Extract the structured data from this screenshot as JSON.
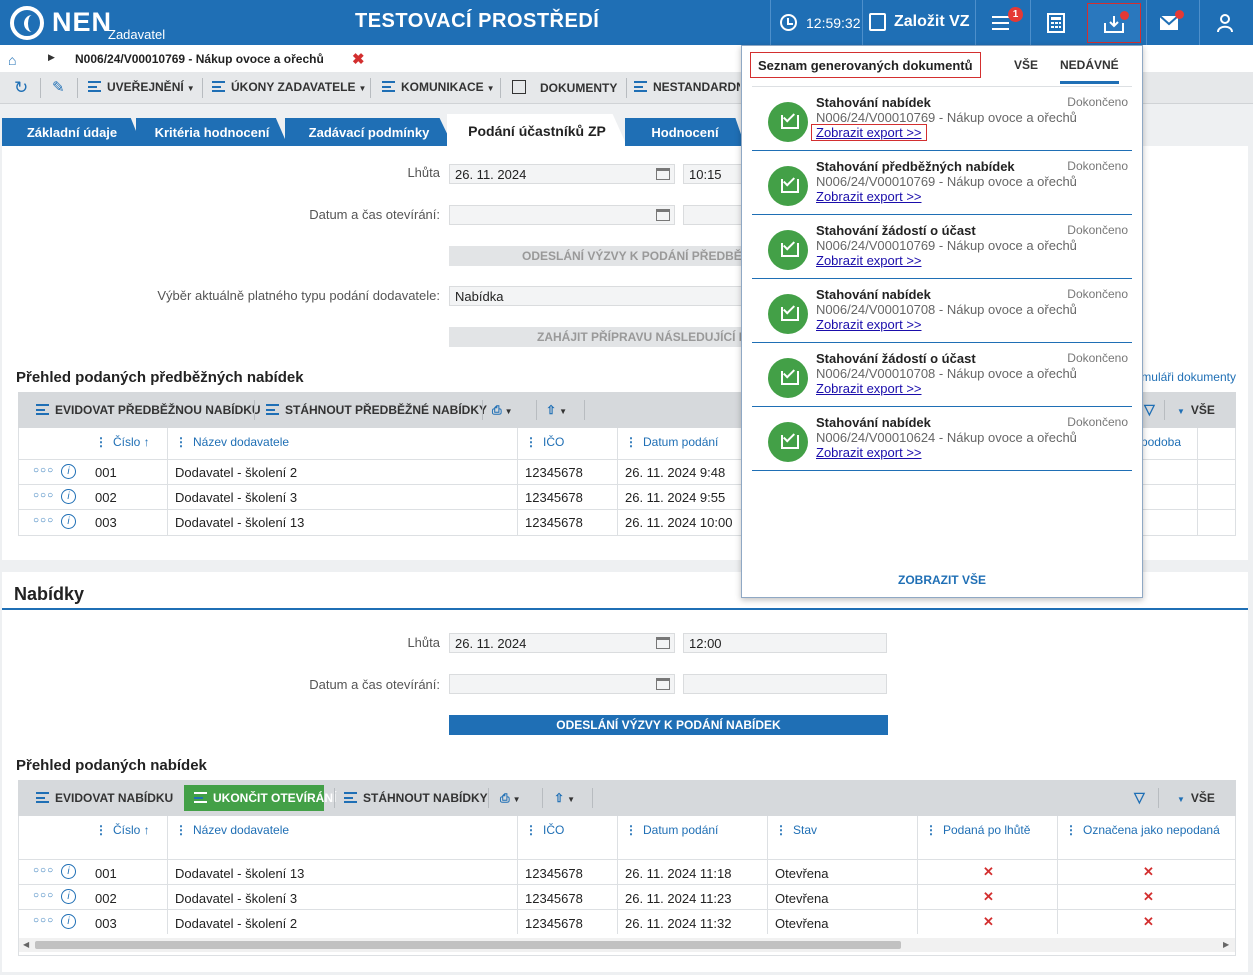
{
  "header": {
    "logo": "NEN",
    "logo_sub": "Zadavatel",
    "title": "TESTOVACÍ PROSTŘEDÍ",
    "clock": "12:59:32",
    "create": "Založit VZ",
    "menu_badge": "1"
  },
  "breadcrumb": {
    "text": "N006/24/V00010769 - Nákup ovoce a ořechů"
  },
  "toolbar": {
    "items": [
      "UVEŘEJNĚNÍ",
      "ÚKONY ZADAVATELE",
      "KOMUNIKACE",
      "DOKUMENTY",
      "NESTANDARDNÍ"
    ]
  },
  "tabs": [
    "Základní údaje",
    "Kritéria hodnocení",
    "Zadávací podmínky",
    "Podání účastníků ZP",
    "Hodnocení"
  ],
  "pre": {
    "lhuta_label": "Lhůta",
    "lhuta_date": "26. 11. 2024",
    "lhuta_time": "10:15",
    "open_label": "Datum a čas otevírání:",
    "send_btn": "ODESLÁNÍ VÝZVY K PODÁNÍ PŘEDBĚŽNÝCH NABÍDEK",
    "type_label": "Výběr aktuálně platného typu podání dodavatele:",
    "type_value": "Nabídka",
    "prep_btn": "ZAHÁJIT PŘÍPRAVU NÁSLEDUJÍCÍ FÁZE",
    "section": "Přehled podaných předběžných nabídek",
    "right_link": "Formuláři dokumenty",
    "btn_add": "EVIDOVAT PŘEDBĚŽNOU NABÍDKU",
    "btn_dl": "STÁHNOUT PŘEDBĚŽNÉ NABÍDKY",
    "all": "VŠE",
    "cols": [
      "Číslo",
      "Název dodavatele",
      "IČO",
      "Datum podání",
      "Lhůta podoba"
    ],
    "rows": [
      {
        "no": "001",
        "name": "Dodavatel - školení 2",
        "ico": "12345678",
        "date": "26. 11. 2024 9:48"
      },
      {
        "no": "002",
        "name": "Dodavatel - školení 3",
        "ico": "12345678",
        "date": "26. 11. 2024 9:55"
      },
      {
        "no": "003",
        "name": "Dodavatel - školení 13",
        "ico": "12345678",
        "date": "26. 11. 2024 10:00"
      }
    ]
  },
  "offers": {
    "title": "Nabídky",
    "lhuta_label": "Lhůta",
    "lhuta_date": "26. 11. 2024",
    "lhuta_time": "12:00",
    "open_label": "Datum a čas otevírání:",
    "send_btn": "ODESLÁNÍ VÝZVY K PODÁNÍ NABÍDEK",
    "section": "Přehled podaných nabídek",
    "btn_add": "EVIDOVAT NABÍDKU",
    "btn_end": "UKONČIT OTEVÍRÁNÍ",
    "btn_dl": "STÁHNOUT NABÍDKY",
    "all": "VŠE",
    "cols": [
      "Číslo",
      "Název dodavatele",
      "IČO",
      "Datum podání",
      "Stav",
      "Podaná po lhůtě",
      "Označena jako nepodaná"
    ],
    "rows": [
      {
        "no": "001",
        "name": "Dodavatel - školení 13",
        "ico": "12345678",
        "date": "26. 11. 2024 11:18",
        "state": "Otevřena"
      },
      {
        "no": "002",
        "name": "Dodavatel - školení 3",
        "ico": "12345678",
        "date": "26. 11. 2024 11:23",
        "state": "Otevřena"
      },
      {
        "no": "003",
        "name": "Dodavatel - školení 2",
        "ico": "12345678",
        "date": "26. 11. 2024 11:32",
        "state": "Otevřena"
      }
    ]
  },
  "docs": {
    "title": "Seznam generovaných dokumentů",
    "tab_all": "VŠE",
    "tab_recent": "NEDÁVNÉ",
    "show_all": "ZOBRAZIT VŠE",
    "items": [
      {
        "title": "Stahování nabídek",
        "status": "Dokončeno",
        "sub": "N006/24/V00010769 - Nákup ovoce a ořechů",
        "link": "Zobrazit export >>"
      },
      {
        "title": "Stahování předběžných nabídek",
        "status": "Dokončeno",
        "sub": "N006/24/V00010769 - Nákup ovoce a ořechů",
        "link": "Zobrazit export >>"
      },
      {
        "title": "Stahování žádostí o účast",
        "status": "Dokončeno",
        "sub": "N006/24/V00010769 - Nákup ovoce a ořechů",
        "link": "Zobrazit export >>"
      },
      {
        "title": "Stahování nabídek",
        "status": "Dokončeno",
        "sub": "N006/24/V00010708 - Nákup ovoce a ořechů",
        "link": "Zobrazit export >>"
      },
      {
        "title": "Stahování žádostí o účast",
        "status": "Dokončeno",
        "sub": "N006/24/V00010708 - Nákup ovoce a ořechů",
        "link": "Zobrazit export >>"
      },
      {
        "title": "Stahování nabídek",
        "status": "Dokončeno",
        "sub": "N006/24/V00010624 - Nákup ovoce a ořechů",
        "link": "Zobrazit export >>"
      }
    ]
  },
  "colors": {
    "brand": "#1f6fb5",
    "success": "#43a047",
    "danger": "#d32f2f"
  }
}
